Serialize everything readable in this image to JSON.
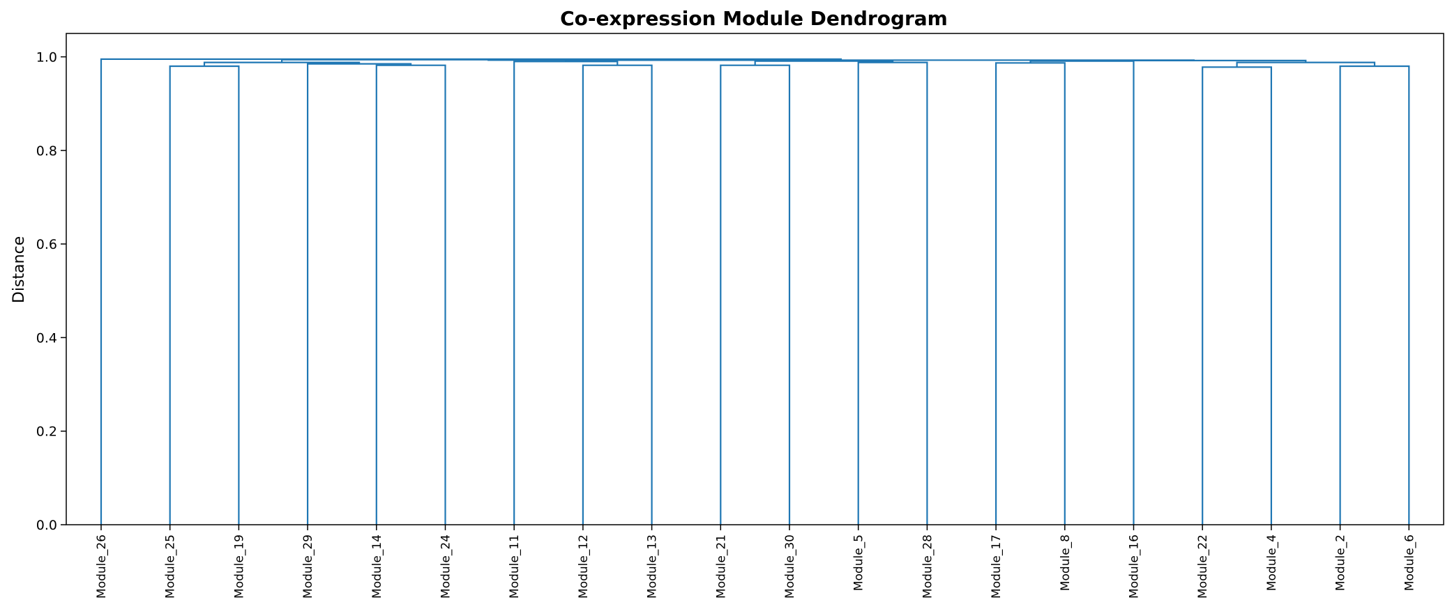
{
  "chart_data": {
    "type": "dendrogram",
    "title": "Co-expression Module Dendrogram",
    "xlabel": "",
    "ylabel": "Distance",
    "ylim": [
      0.0,
      1.05
    ],
    "yticks": [
      "0.0",
      "0.2",
      "0.4",
      "0.6",
      "0.8",
      "1.0"
    ],
    "grid": false,
    "color": "#1f77b4",
    "leaves": [
      "Module_26",
      "Module_25",
      "Module_19",
      "Module_29",
      "Module_14",
      "Module_24",
      "Module_11",
      "Module_12",
      "Module_13",
      "Module_21",
      "Module_30",
      "Module_5",
      "Module_28",
      "Module_17",
      "Module_8",
      "Module_16",
      "Module_22",
      "Module_4",
      "Module_2",
      "Module_6"
    ],
    "merges": [
      {
        "id": "A",
        "left": "Module_25",
        "right": "Module_19",
        "height": 0.98
      },
      {
        "id": "B",
        "left": "Module_14",
        "right": "Module_24",
        "height": 0.982
      },
      {
        "id": "C",
        "left": "Module_29",
        "right": "B",
        "height": 0.985
      },
      {
        "id": "D",
        "left": "A",
        "right": "C",
        "height": 0.988
      },
      {
        "id": "E",
        "left": "Module_12",
        "right": "Module_13",
        "height": 0.982
      },
      {
        "id": "F",
        "left": "Module_11",
        "right": "E",
        "height": 0.99
      },
      {
        "id": "G",
        "left": "Module_21",
        "right": "Module_30",
        "height": 0.982
      },
      {
        "id": "H",
        "left": "Module_5",
        "right": "Module_28",
        "height": 0.988
      },
      {
        "id": "I",
        "left": "G",
        "right": "H",
        "height": 0.991
      },
      {
        "id": "J",
        "left": "F",
        "right": "I",
        "height": 0.993
      },
      {
        "id": "K",
        "left": "D",
        "right": "J",
        "height": 0.994
      },
      {
        "id": "L",
        "left": "Module_17",
        "right": "Module_8",
        "height": 0.987
      },
      {
        "id": "M",
        "left": "L",
        "right": "Module_16",
        "height": 0.991
      },
      {
        "id": "N",
        "left": "Module_22",
        "right": "Module_4",
        "height": 0.978
      },
      {
        "id": "O",
        "left": "Module_2",
        "right": "Module_6",
        "height": 0.98
      },
      {
        "id": "P",
        "left": "N",
        "right": "O",
        "height": 0.988
      },
      {
        "id": "Q",
        "left": "M",
        "right": "P",
        "height": 0.992
      },
      {
        "id": "R",
        "left": "K",
        "right": "Q",
        "height": 0.993
      },
      {
        "id": "S",
        "left": "Module_26",
        "right": "R",
        "height": 0.995
      }
    ]
  }
}
